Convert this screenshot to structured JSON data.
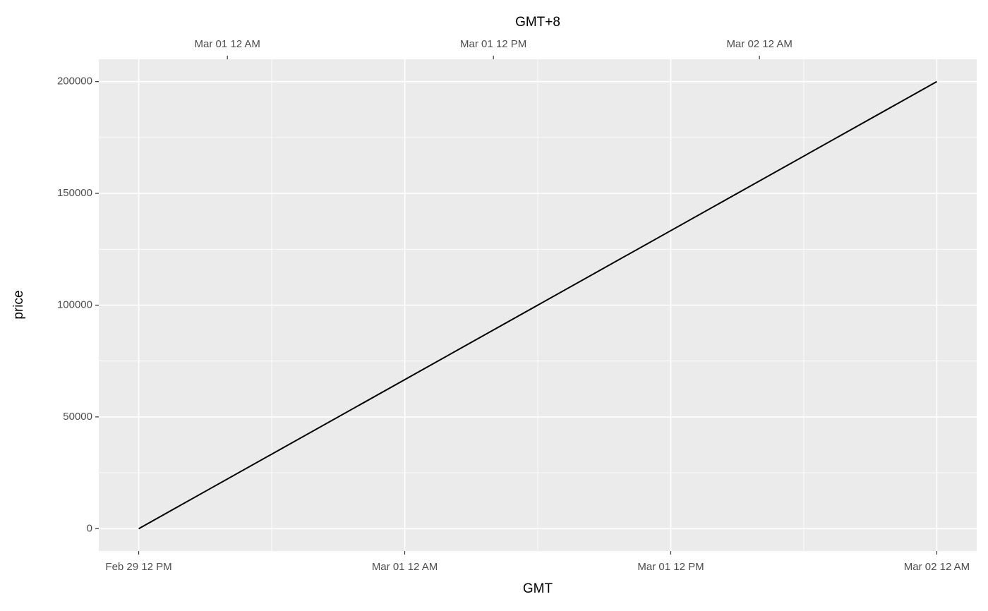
{
  "chart_data": {
    "type": "line",
    "x_label": "GMT",
    "x2_label": "GMT+8",
    "y_label": "price",
    "x": [
      0,
      36
    ],
    "values": [
      0,
      200000
    ],
    "color": "#000000",
    "xlim": [
      -1.8,
      37.8
    ],
    "xticks": [
      {
        "value": 0,
        "label": "Feb 29 12 PM"
      },
      {
        "value": 12,
        "label": "Mar 01 12 AM"
      },
      {
        "value": 24,
        "label": "Mar 01 12 PM"
      },
      {
        "value": 36,
        "label": "Mar 02 12 AM"
      }
    ],
    "x2ticks": [
      {
        "value": 4,
        "label": "Mar 01 12 AM"
      },
      {
        "value": 16,
        "label": "Mar 01 12 PM"
      },
      {
        "value": 28,
        "label": "Mar 02 12 AM"
      }
    ],
    "ylim": [
      -10000,
      210000
    ],
    "yticks": [
      0,
      50000,
      100000,
      150000,
      200000
    ],
    "grid": true
  }
}
